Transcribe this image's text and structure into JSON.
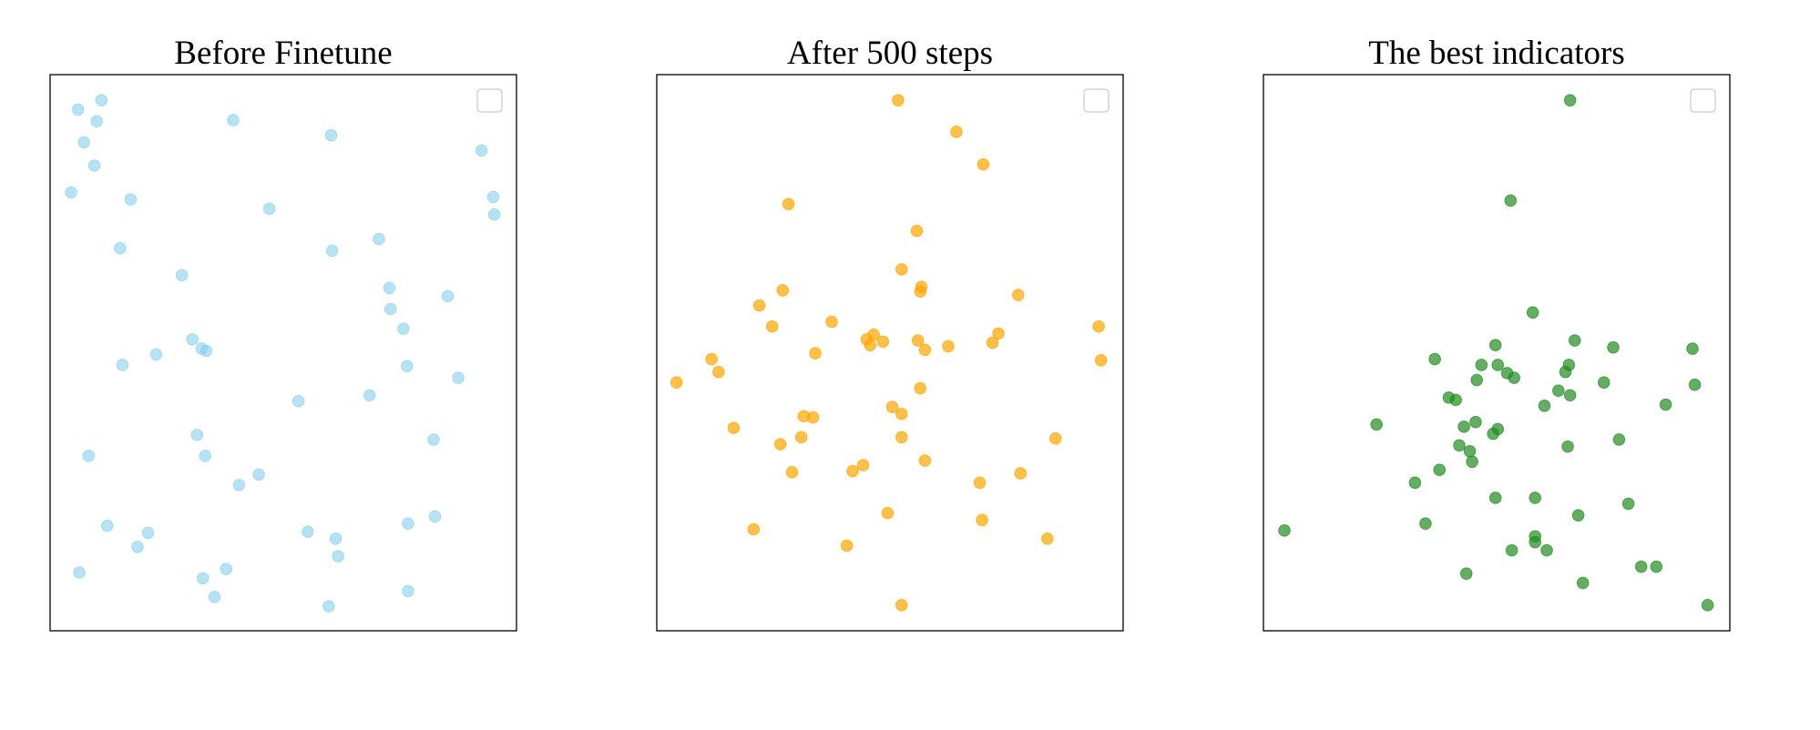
{
  "chart_data": [
    {
      "type": "scatter",
      "title": "Before Finetune",
      "color": "#87ceeb",
      "alpha": 0.6,
      "xlim": [
        0,
        400
      ],
      "ylim": [
        0,
        477
      ],
      "x": [
        24,
        44,
        40,
        29,
        38,
        18,
        69,
        157,
        241,
        370,
        380,
        381,
        188,
        60,
        242,
        282,
        113,
        291,
        292,
        341,
        303,
        122,
        130,
        134,
        91,
        62,
        306,
        350,
        274,
        213,
        126,
        329,
        33,
        133,
        179,
        162,
        49,
        84,
        75,
        221,
        245,
        247,
        307,
        330,
        25,
        151,
        131,
        141,
        239,
        307
      ],
      "y": [
        447,
        455,
        437,
        419,
        399,
        376,
        370,
        438,
        425,
        412,
        372,
        357,
        362,
        328,
        326,
        336,
        305,
        294,
        276,
        287,
        259,
        250,
        242,
        240,
        237,
        228,
        227,
        217,
        202,
        197,
        168,
        164,
        150,
        150,
        134,
        125,
        90,
        84,
        72,
        85,
        79,
        64,
        92,
        98,
        50,
        53,
        45,
        29,
        21,
        34
      ]
    },
    {
      "type": "scatter",
      "title": "After 500 steps",
      "color": "#ffa500",
      "alpha": 0.7,
      "xlim": [
        0,
        400
      ],
      "ylim": [
        0,
        477
      ],
      "x": [
        207,
        257,
        280,
        113,
        223,
        210,
        227,
        226,
        108,
        88,
        310,
        150,
        99,
        379,
        293,
        180,
        186,
        194,
        183,
        224,
        230,
        250,
        288,
        136,
        47,
        53,
        381,
        17,
        226,
        202,
        210,
        126,
        134,
        66,
        124,
        210,
        342,
        106,
        230,
        116,
        177,
        168,
        312,
        277,
        198,
        279,
        83,
        335,
        163,
        210
      ],
      "y": [
        455,
        428,
        400,
        366,
        343,
        310,
        295,
        291,
        292,
        279,
        288,
        265,
        261,
        261,
        255,
        250,
        254,
        248,
        245,
        249,
        241,
        244,
        247,
        238,
        233,
        222,
        232,
        213,
        208,
        192,
        186,
        184,
        183,
        174,
        166,
        166,
        165,
        160,
        146,
        136,
        142,
        137,
        135,
        127,
        101,
        95,
        87,
        79,
        73,
        22
      ]
    },
    {
      "type": "scatter",
      "title": "The best indicators",
      "color": "#228b22",
      "alpha": 0.7,
      "xlim": [
        0,
        400
      ],
      "ylim": [
        0,
        477
      ],
      "x": [
        263,
        212,
        231,
        267,
        199,
        300,
        368,
        147,
        187,
        201,
        262,
        209,
        215,
        259,
        183,
        292,
        370,
        253,
        263,
        159,
        165,
        241,
        345,
        97,
        182,
        172,
        201,
        197,
        305,
        168,
        177,
        261,
        179,
        151,
        130,
        199,
        233,
        313,
        270,
        139,
        18,
        233,
        233,
        213,
        243,
        324,
        337,
        174,
        274,
        381
      ],
      "y": [
        455,
        369,
        273,
        249,
        245,
        243,
        242,
        233,
        228,
        228,
        228,
        221,
        217,
        222,
        215,
        213,
        211,
        206,
        202,
        200,
        198,
        193,
        194,
        177,
        179,
        175,
        173,
        169,
        164,
        159,
        154,
        158,
        145,
        138,
        127,
        114,
        114,
        109,
        99,
        92,
        86,
        81,
        76,
        69,
        69,
        55,
        55,
        49,
        41,
        22
      ]
    }
  ]
}
